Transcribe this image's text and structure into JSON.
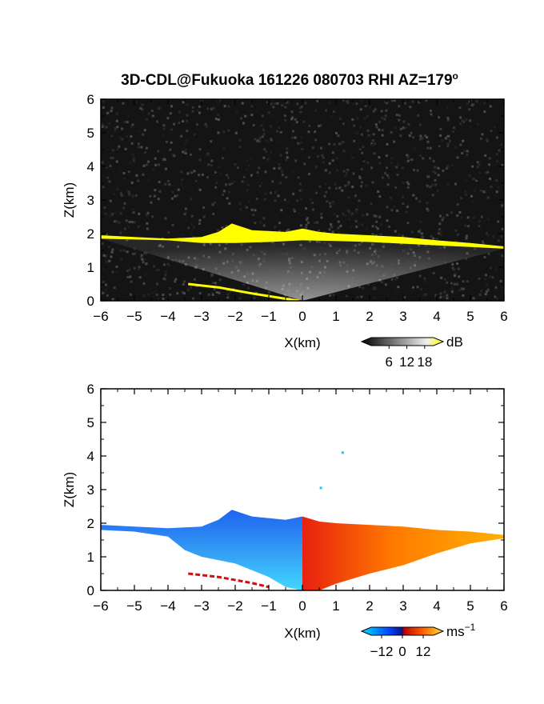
{
  "title": "3D-CDL@Fukuoka 161226 080703 RHI AZ=179",
  "title_superscript": "o",
  "chart_data": [
    {
      "type": "heatmap",
      "name": "reflectivity",
      "xlabel": "X(km)",
      "ylabel": "Z(km)",
      "xlim": [
        -6,
        6
      ],
      "ylim": [
        0,
        6
      ],
      "x_ticks": [
        -6,
        -5,
        -4,
        -3,
        -2,
        -1,
        0,
        1,
        2,
        3,
        4,
        5,
        6
      ],
      "y_ticks": [
        0,
        1,
        2,
        3,
        4,
        5,
        6
      ],
      "background": "#141414",
      "cloud_top_profile": {
        "x": [
          -6,
          -5,
          -4,
          -3,
          -2.5,
          -2.1,
          -1.5,
          -0.5,
          0,
          0.5,
          1,
          2,
          3,
          4,
          5,
          6
        ],
        "z": [
          1.95,
          1.9,
          1.85,
          1.9,
          2.05,
          2.3,
          2.1,
          2.05,
          2.15,
          2.05,
          2.0,
          1.95,
          1.9,
          1.8,
          1.72,
          1.62
        ]
      },
      "cloud_base_profile": {
        "x": [
          -6,
          -4,
          -3,
          -2,
          -1,
          0,
          1,
          2,
          3,
          4,
          5,
          6
        ],
        "z": [
          1.85,
          1.8,
          1.72,
          1.72,
          1.75,
          1.8,
          1.78,
          1.75,
          1.7,
          1.65,
          1.6,
          1.55
        ]
      },
      "ground_echo": {
        "x": [
          -3.4,
          -2.5,
          -1.5,
          -0.5,
          -0.1
        ],
        "z": [
          0.5,
          0.4,
          0.22,
          0.06,
          0.0
        ]
      },
      "colorbar": {
        "unit": "dB",
        "ticks": [
          6,
          12,
          18
        ],
        "range": [
          0,
          21
        ],
        "colors": [
          "#000000",
          "#ffffff",
          "#ffff00"
        ]
      }
    },
    {
      "type": "heatmap",
      "name": "doppler_velocity",
      "xlabel": "X(km)",
      "ylabel": "Z(km)",
      "xlim": [
        -6,
        6
      ],
      "ylim": [
        0,
        6
      ],
      "x_ticks": [
        -6,
        -5,
        -4,
        -3,
        -2,
        -1,
        0,
        1,
        2,
        3,
        4,
        5,
        6
      ],
      "y_ticks": [
        0,
        1,
        2,
        3,
        4,
        5,
        6
      ],
      "background": "#ffffff",
      "cloud_top_profile": {
        "x": [
          -6,
          -5,
          -4,
          -3,
          -2.5,
          -2.1,
          -1.5,
          -0.5,
          0,
          0.5,
          1,
          2,
          3,
          4,
          5,
          6
        ],
        "z": [
          1.95,
          1.9,
          1.85,
          1.9,
          2.1,
          2.4,
          2.2,
          2.1,
          2.2,
          2.05,
          2.0,
          1.95,
          1.9,
          1.8,
          1.75,
          1.65
        ]
      },
      "echo_bottom_profile": {
        "x": [
          -6,
          -5,
          -4,
          -3.5,
          -3,
          -2,
          -1,
          -0.5,
          0,
          0.5,
          1,
          2,
          3,
          4,
          5,
          6
        ],
        "z": [
          1.8,
          1.75,
          1.6,
          1.2,
          1.0,
          0.8,
          0.4,
          0.1,
          0.0,
          0.0,
          0.2,
          0.5,
          0.75,
          1.1,
          1.4,
          1.55
        ]
      },
      "isolated_points": [
        {
          "x": 1.2,
          "z": 4.1
        },
        {
          "x": 0.55,
          "z": 3.05
        }
      ],
      "ground_echo": {
        "x": [
          -3.4,
          -2.5,
          -1.5,
          -1.0
        ],
        "z": [
          0.5,
          0.4,
          0.22,
          0.1
        ]
      },
      "colorbar": {
        "unit": "ms",
        "unit_superscript": "−1",
        "ticks": [
          -12,
          0,
          12
        ],
        "tick_labels": [
          "−12",
          "0",
          "12"
        ],
        "range": [
          -18,
          18
        ],
        "colors": [
          "#00d8ff",
          "#0050ff",
          "#101080",
          "#c00000",
          "#ff6000",
          "#ffe030"
        ]
      }
    }
  ]
}
